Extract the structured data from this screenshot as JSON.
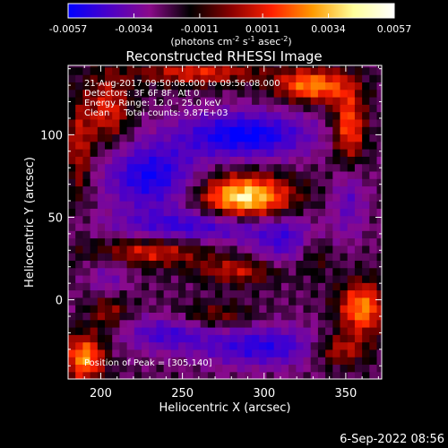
{
  "colorbar": {
    "ticks": [
      "-0.0057",
      "-0.0034",
      "-0.0011",
      "0.0011",
      "0.0034",
      "0.0057"
    ],
    "unit_text": "(photons cm",
    "unit_sup1": "-2",
    "unit_s": " s",
    "unit_sup2": "-1",
    "unit_asec": " asec",
    "unit_sup3": "-2",
    "unit_close": ")",
    "colors": [
      "#0000ff",
      "#4b00c8",
      "#8a0a8a",
      "#000000",
      "#8a0000",
      "#ff2000",
      "#ff9a00",
      "#ffff9a",
      "#ffffff"
    ]
  },
  "chart_data": {
    "type": "heatmap",
    "title": "Reconstructed RHESSI Image",
    "xlabel": "Heliocentric X (arcsec)",
    "ylabel": "Heliocentric Y (arcsec)",
    "xlim": [
      180,
      372
    ],
    "ylim": [
      -48,
      142
    ],
    "xticks": [
      200,
      250,
      300,
      350
    ],
    "yticks": [
      0,
      50,
      100
    ],
    "vmin": -0.0057,
    "vmax": 0.0057,
    "peak": {
      "x": 305,
      "y": 140
    },
    "annotations": [
      "21-Aug-2017 09:50:08.000 to 09:56:08.000",
      "Detectors: 3F 6F 8F, Att 0",
      "Energy Range: 12.0 - 25.0 keV",
      "Clean     Total counts: 9.87E+03"
    ],
    "peak_label": "Position of Peak = [305,140]"
  },
  "timestamp": "6-Sep-2022 08:56"
}
